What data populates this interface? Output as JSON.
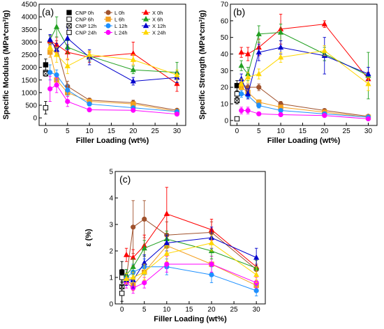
{
  "chart_data": [
    {
      "panel": "(a)",
      "type": "scatter",
      "xlabel": "Filler Loading (wt%)",
      "ylabel": "Specific Modulus (MPa*cm³/g)",
      "xlim": [
        -1.5,
        32
      ],
      "ylim": [
        -300,
        4500
      ],
      "xticks": [
        0,
        5,
        10,
        15,
        20,
        25,
        30
      ],
      "yticks": [
        0,
        500,
        1000,
        1500,
        2000,
        2500,
        3000,
        3500,
        4000,
        4500
      ],
      "legend_position": "top",
      "series": [
        {
          "name": "CNP 0h",
          "color": "#000000",
          "marker": "square",
          "x": [
            0
          ],
          "y": [
            2100
          ],
          "err": [
            230
          ]
        },
        {
          "name": "CNP 6h",
          "color": "#000000",
          "marker": "square-open",
          "x": [
            0
          ],
          "y": [
            1800
          ],
          "err": [
            80
          ]
        },
        {
          "name": "CNP 12h",
          "color": "#000000",
          "marker": "square-x",
          "x": [
            0
          ],
          "y": [
            1750
          ],
          "err": [
            100
          ]
        },
        {
          "name": "CNP 24h",
          "color": "#000000",
          "marker": "square-open",
          "x": [
            0
          ],
          "y": [
            400
          ],
          "err": [
            250
          ]
        },
        {
          "name": "L 0h",
          "color": "#a0522d",
          "marker": "circle",
          "x": [
            1,
            2.5,
            5,
            10,
            20,
            30
          ],
          "y": [
            3000,
            2800,
            1250,
            700,
            600,
            300
          ],
          "err": [
            250,
            250,
            200,
            80,
            100,
            50
          ]
        },
        {
          "name": "L 6h",
          "color": "#f4a020",
          "marker": "square",
          "x": [
            1,
            2.5,
            5,
            10,
            20,
            30
          ],
          "y": [
            2600,
            1500,
            1000,
            650,
            550,
            250
          ],
          "err": [
            200,
            200,
            150,
            80,
            80,
            50
          ]
        },
        {
          "name": "L 12h",
          "color": "#1e90ff",
          "marker": "circle",
          "x": [
            1,
            2.5,
            5,
            10,
            20,
            30
          ],
          "y": [
            1800,
            1700,
            1100,
            550,
            400,
            250
          ],
          "err": [
            300,
            200,
            200,
            80,
            60,
            50
          ]
        },
        {
          "name": "L 24h",
          "color": "#ff00ff",
          "marker": "circle",
          "x": [
            1,
            2.5,
            5,
            10,
            20,
            30
          ],
          "y": [
            1150,
            1300,
            650,
            320,
            300,
            150
          ],
          "err": [
            500,
            300,
            200,
            60,
            60,
            40
          ]
        },
        {
          "name": "X 0h",
          "color": "#ff0000",
          "marker": "triangle",
          "x": [
            1,
            2.5,
            5,
            10,
            20,
            30
          ],
          "y": [
            3050,
            2900,
            2600,
            2400,
            2550,
            1350
          ],
          "err": [
            200,
            300,
            300,
            200,
            450,
            300
          ]
        },
        {
          "name": "X 6h",
          "color": "#22a022",
          "marker": "triangle",
          "x": [
            1,
            2.5,
            5,
            10,
            20,
            30
          ],
          "y": [
            3100,
            3600,
            2800,
            2450,
            1900,
            1800
          ],
          "err": [
            150,
            400,
            250,
            200,
            150,
            400
          ]
        },
        {
          "name": "X 12h",
          "color": "#0000cd",
          "marker": "triangle",
          "x": [
            1,
            2.5,
            5,
            10,
            20,
            30
          ],
          "y": [
            3100,
            2700,
            3150,
            2400,
            1450,
            1600
          ],
          "err": [
            200,
            250,
            450,
            300,
            150,
            200
          ]
        },
        {
          "name": "X 24h",
          "color": "#ffd700",
          "marker": "triangle",
          "x": [
            1,
            2.5,
            5,
            10,
            20,
            30
          ],
          "y": [
            2800,
            2500,
            2050,
            2500,
            2300,
            1700
          ],
          "err": [
            150,
            300,
            300,
            150,
            200,
            200
          ]
        }
      ]
    },
    {
      "panel": "(b)",
      "type": "scatter",
      "xlabel": "Filler Loading (wt%)",
      "ylabel": "Specific Strength (MPa*cm³/g)",
      "xlim": [
        -1.5,
        32
      ],
      "ylim": [
        -3,
        70
      ],
      "xticks": [
        0,
        5,
        10,
        15,
        20,
        25,
        30
      ],
      "yticks": [
        0,
        10,
        20,
        30,
        40,
        50,
        60,
        70
      ],
      "series": [
        {
          "name": "CNP 0h",
          "color": "#000000",
          "marker": "square",
          "x": [
            0
          ],
          "y": [
            21
          ],
          "err": [
            3
          ]
        },
        {
          "name": "CNP 6h",
          "color": "#000000",
          "marker": "square-open",
          "x": [
            0
          ],
          "y": [
            16
          ],
          "err": [
            2
          ]
        },
        {
          "name": "CNP 12h",
          "color": "#000000",
          "marker": "square-x",
          "x": [
            0
          ],
          "y": [
            12
          ],
          "err": [
            2
          ]
        },
        {
          "name": "CNP 24h",
          "color": "#000000",
          "marker": "square-open",
          "x": [
            0
          ],
          "y": [
            1
          ],
          "err": [
            0.5
          ]
        },
        {
          "name": "L 0h",
          "color": "#a0522d",
          "marker": "circle",
          "x": [
            1,
            2.5,
            5,
            10,
            20,
            30
          ],
          "y": [
            22,
            20,
            20,
            10,
            6,
            2.5
          ],
          "err": [
            2,
            2,
            2,
            1.5,
            1,
            0.5
          ]
        },
        {
          "name": "L 6h",
          "color": "#f4a020",
          "marker": "square",
          "x": [
            1,
            2.5,
            5,
            10,
            20,
            30
          ],
          "y": [
            20,
            17,
            11,
            8,
            5,
            2
          ],
          "err": [
            2,
            2,
            1.5,
            1,
            1,
            0.5
          ]
        },
        {
          "name": "L 12h",
          "color": "#1e90ff",
          "marker": "circle",
          "x": [
            1,
            2.5,
            5,
            10,
            20,
            30
          ],
          "y": [
            16,
            15,
            9,
            6,
            4,
            2
          ],
          "err": [
            2,
            2,
            1.5,
            1,
            1,
            0.5
          ]
        },
        {
          "name": "L 24h",
          "color": "#ff00ff",
          "marker": "circle",
          "x": [
            1,
            2.5,
            5,
            10,
            20,
            30
          ],
          "y": [
            6,
            6,
            4,
            3.5,
            3,
            1
          ],
          "err": [
            2,
            2,
            1,
            0.5,
            0.5,
            0.5
          ]
        },
        {
          "name": "X 0h",
          "color": "#ff0000",
          "marker": "triangle",
          "x": [
            1,
            2.5,
            5,
            10,
            20,
            30
          ],
          "y": [
            41,
            40,
            44,
            55,
            58,
            25
          ],
          "err": [
            3,
            4,
            5,
            9,
            2,
            4
          ]
        },
        {
          "name": "X 6h",
          "color": "#22a022",
          "marker": "triangle",
          "x": [
            1,
            2.5,
            5,
            10,
            20,
            30
          ],
          "y": [
            33,
            28,
            52,
            53,
            40,
            27
          ],
          "err": [
            3,
            4,
            5,
            5,
            4,
            14
          ]
        },
        {
          "name": "X 12h",
          "color": "#0000cd",
          "marker": "triangle",
          "x": [
            1,
            2.5,
            5,
            10,
            20,
            30
          ],
          "y": [
            25,
            16,
            41,
            44,
            39,
            28
          ],
          "err": [
            3,
            3,
            5,
            4,
            11,
            4
          ]
        },
        {
          "name": "X 24h",
          "color": "#ffd700",
          "marker": "triangle",
          "x": [
            1,
            2.5,
            5,
            10,
            20,
            30
          ],
          "y": [
            22,
            26,
            28,
            38,
            42,
            22
          ],
          "err": [
            3,
            3,
            3,
            3,
            3,
            4
          ]
        }
      ]
    },
    {
      "panel": "(c)",
      "type": "scatter",
      "xlabel": "Filler Loading (wt%)",
      "ylabel": "ε (%)",
      "xlim": [
        -1.5,
        32
      ],
      "ylim": [
        0,
        5
      ],
      "xticks": [
        0,
        5,
        10,
        15,
        20,
        25,
        30
      ],
      "yticks": [
        0,
        1,
        2,
        3,
        4,
        5
      ],
      "series": [
        {
          "name": "CNP 0h",
          "color": "#000000",
          "marker": "square",
          "x": [
            0
          ],
          "y": [
            1.2
          ],
          "err": [
            0.4
          ]
        },
        {
          "name": "CNP 6h",
          "color": "#000000",
          "marker": "square-open",
          "x": [
            0
          ],
          "y": [
            1.0
          ],
          "err": [
            0.3
          ]
        },
        {
          "name": "CNP 12h",
          "color": "#000000",
          "marker": "square-x",
          "x": [
            0
          ],
          "y": [
            0.65
          ],
          "err": [
            0.2
          ]
        },
        {
          "name": "CNP 24h",
          "color": "#000000",
          "marker": "square-open",
          "x": [
            0
          ],
          "y": [
            0.4
          ],
          "err": [
            0.3
          ]
        },
        {
          "name": "L 0h",
          "color": "#a0522d",
          "marker": "circle",
          "x": [
            1,
            2.5,
            5,
            10,
            20,
            30
          ],
          "y": [
            1.0,
            2.9,
            3.2,
            2.6,
            2.7,
            1.3
          ],
          "err": [
            0.3,
            1.0,
            0.7,
            0.5,
            0.4,
            0.2
          ]
        },
        {
          "name": "L 6h",
          "color": "#f4a020",
          "marker": "square",
          "x": [
            1,
            2.5,
            5,
            10,
            20,
            30
          ],
          "y": [
            0.9,
            0.7,
            1.2,
            2.2,
            1.5,
            0.7
          ],
          "err": [
            0.2,
            0.2,
            0.3,
            0.4,
            0.3,
            0.2
          ]
        },
        {
          "name": "L 12h",
          "color": "#1e90ff",
          "marker": "circle",
          "x": [
            1,
            2.5,
            5,
            10,
            20,
            30
          ],
          "y": [
            1.0,
            1.2,
            1.4,
            1.4,
            1.1,
            0.5
          ],
          "err": [
            0.3,
            0.3,
            0.3,
            0.3,
            0.3,
            0.2
          ]
        },
        {
          "name": "L 24h",
          "color": "#ff00ff",
          "marker": "circle",
          "x": [
            1,
            2.5,
            5,
            10,
            20,
            30
          ],
          "y": [
            0.8,
            0.6,
            0.8,
            1.5,
            1.5,
            0.8
          ],
          "err": [
            0.2,
            0.2,
            0.2,
            0.3,
            0.3,
            0.2
          ]
        },
        {
          "name": "X 0h",
          "color": "#ff0000",
          "marker": "triangle",
          "x": [
            1,
            2.5,
            5,
            10,
            20,
            30
          ],
          "y": [
            1.85,
            1.75,
            2.2,
            3.4,
            2.8,
            1.4
          ],
          "err": [
            0.25,
            0.3,
            0.4,
            1.0,
            0.4,
            0.3
          ]
        },
        {
          "name": "X 6h",
          "color": "#22a022",
          "marker": "triangle",
          "x": [
            1,
            2.5,
            5,
            10,
            20,
            30
          ],
          "y": [
            1.1,
            1.4,
            2.1,
            2.45,
            2.0,
            1.35
          ],
          "err": [
            0.2,
            0.3,
            0.3,
            0.3,
            0.3,
            0.3
          ]
        },
        {
          "name": "X 12h",
          "color": "#0000cd",
          "marker": "triangle",
          "x": [
            1,
            2.5,
            5,
            10,
            20,
            30
          ],
          "y": [
            0.9,
            0.9,
            1.55,
            2.3,
            2.5,
            1.75
          ],
          "err": [
            0.2,
            0.3,
            0.3,
            0.3,
            0.4,
            0.35
          ]
        },
        {
          "name": "X 24h",
          "color": "#ffd700",
          "marker": "triangle",
          "x": [
            1,
            2.5,
            5,
            10,
            20,
            30
          ],
          "y": [
            0.95,
            1.0,
            1.2,
            1.9,
            2.3,
            1.1
          ],
          "err": [
            0.2,
            0.2,
            0.3,
            0.3,
            0.3,
            0.3
          ]
        }
      ]
    }
  ]
}
